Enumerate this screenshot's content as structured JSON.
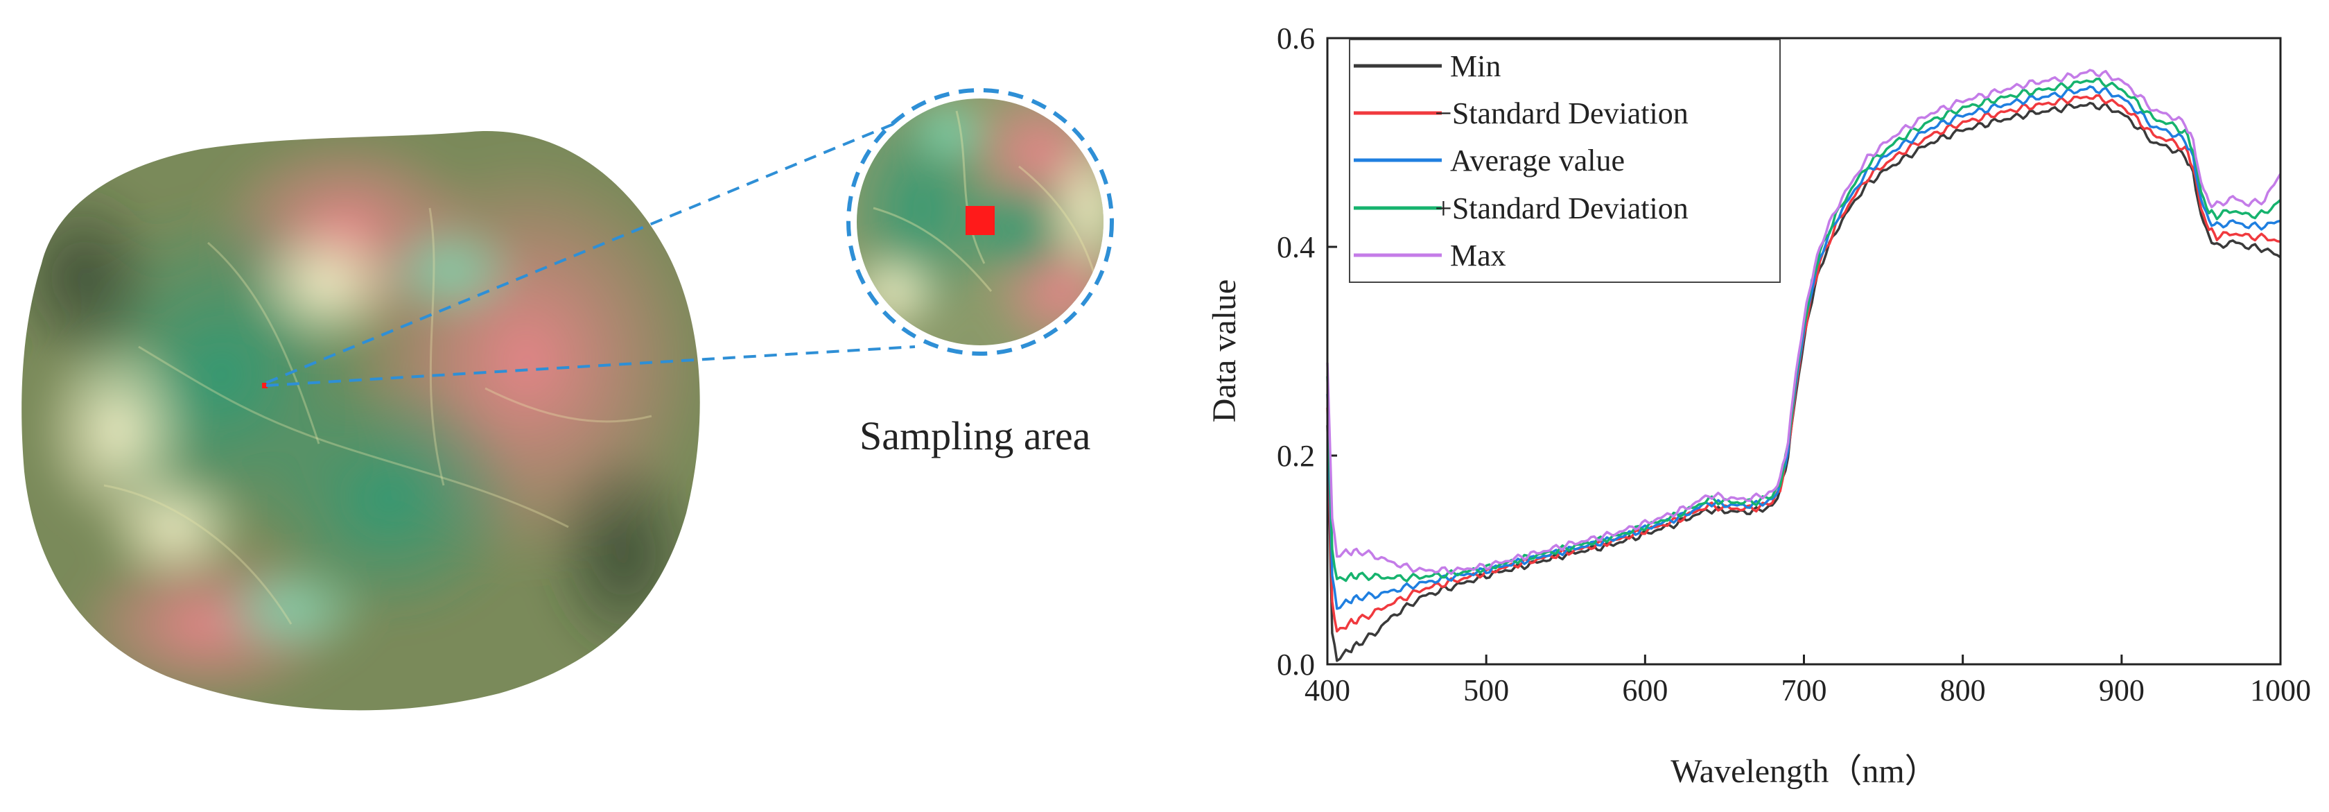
{
  "photo": {
    "caption": "Sampling area"
  },
  "colors": {
    "min": "#3a3a3a",
    "minus_sd": "#f0393e",
    "average": "#1f7fe0",
    "plus_sd": "#16b36e",
    "max": "#c47ce8",
    "marker": "#ff1a1a",
    "callout": "#2e8fd6"
  },
  "chart_data": {
    "type": "line",
    "title": "",
    "xlabel": "Wavelength（nm）",
    "ylabel": "Data value",
    "xlim": [
      400,
      1000
    ],
    "ylim": [
      0.0,
      0.6
    ],
    "xticks": [
      "400",
      "500",
      "600",
      "700",
      "800",
      "900",
      "1000"
    ],
    "xtick_values": [
      400,
      500,
      600,
      700,
      800,
      900,
      1000
    ],
    "yticks": [
      "0.0",
      "0.2",
      "0.4",
      "0.6"
    ],
    "ytick_values": [
      0.0,
      0.2,
      0.4,
      0.6
    ],
    "legend_position": "top-left",
    "x": [
      400,
      403,
      406,
      410,
      415,
      420,
      430,
      440,
      450,
      460,
      480,
      500,
      520,
      550,
      580,
      600,
      620,
      630,
      640,
      650,
      660,
      670,
      680,
      685,
      690,
      695,
      700,
      705,
      710,
      720,
      730,
      740,
      750,
      760,
      780,
      800,
      820,
      840,
      860,
      870,
      880,
      890,
      900,
      910,
      920,
      930,
      940,
      945,
      950,
      955,
      960,
      970,
      980,
      990,
      1000
    ],
    "series": [
      {
        "name": "Min",
        "color_key": "min",
        "values": [
          0.23,
          0.03,
          0.005,
          0.01,
          0.015,
          0.02,
          0.03,
          0.045,
          0.055,
          0.065,
          0.075,
          0.085,
          0.093,
          0.105,
          0.115,
          0.125,
          0.135,
          0.142,
          0.148,
          0.147,
          0.146,
          0.147,
          0.152,
          0.165,
          0.2,
          0.26,
          0.31,
          0.35,
          0.38,
          0.415,
          0.44,
          0.46,
          0.472,
          0.482,
          0.5,
          0.512,
          0.52,
          0.527,
          0.532,
          0.535,
          0.536,
          0.534,
          0.528,
          0.515,
          0.5,
          0.495,
          0.487,
          0.47,
          0.43,
          0.41,
          0.4,
          0.405,
          0.4,
          0.398,
          0.39
        ]
      },
      {
        "name": "−Standard Deviation",
        "color_key": "minus_sd",
        "values": [
          0.245,
          0.06,
          0.03,
          0.035,
          0.04,
          0.043,
          0.05,
          0.058,
          0.065,
          0.072,
          0.08,
          0.088,
          0.096,
          0.107,
          0.118,
          0.128,
          0.138,
          0.145,
          0.152,
          0.15,
          0.149,
          0.15,
          0.155,
          0.168,
          0.203,
          0.265,
          0.315,
          0.355,
          0.385,
          0.42,
          0.445,
          0.466,
          0.478,
          0.489,
          0.507,
          0.519,
          0.527,
          0.534,
          0.539,
          0.542,
          0.544,
          0.541,
          0.535,
          0.522,
          0.507,
          0.502,
          0.494,
          0.477,
          0.437,
          0.417,
          0.41,
          0.413,
          0.41,
          0.409,
          0.405
        ]
      },
      {
        "name": "Average value",
        "color_key": "average",
        "values": [
          0.26,
          0.085,
          0.055,
          0.058,
          0.062,
          0.064,
          0.066,
          0.07,
          0.074,
          0.078,
          0.084,
          0.09,
          0.098,
          0.109,
          0.12,
          0.13,
          0.14,
          0.147,
          0.155,
          0.153,
          0.152,
          0.153,
          0.158,
          0.17,
          0.206,
          0.27,
          0.32,
          0.36,
          0.39,
          0.425,
          0.45,
          0.472,
          0.485,
          0.496,
          0.514,
          0.526,
          0.534,
          0.541,
          0.546,
          0.549,
          0.552,
          0.549,
          0.543,
          0.53,
          0.515,
          0.51,
          0.502,
          0.485,
          0.445,
          0.425,
          0.42,
          0.424,
          0.42,
          0.42,
          0.425
        ]
      },
      {
        "name": "+Standard Deviation",
        "color_key": "plus_sd",
        "values": [
          0.275,
          0.11,
          0.08,
          0.082,
          0.084,
          0.085,
          0.084,
          0.083,
          0.083,
          0.084,
          0.087,
          0.092,
          0.1,
          0.111,
          0.122,
          0.132,
          0.143,
          0.15,
          0.158,
          0.156,
          0.155,
          0.156,
          0.161,
          0.173,
          0.21,
          0.275,
          0.325,
          0.365,
          0.395,
          0.43,
          0.456,
          0.478,
          0.491,
          0.503,
          0.521,
          0.533,
          0.541,
          0.548,
          0.553,
          0.556,
          0.56,
          0.557,
          0.551,
          0.538,
          0.523,
          0.518,
          0.51,
          0.493,
          0.453,
          0.433,
          0.43,
          0.435,
          0.43,
          0.432,
          0.445
        ]
      },
      {
        "name": "Max",
        "color_key": "max",
        "values": [
          0.29,
          0.14,
          0.105,
          0.107,
          0.108,
          0.108,
          0.104,
          0.098,
          0.093,
          0.09,
          0.09,
          0.094,
          0.102,
          0.114,
          0.125,
          0.135,
          0.146,
          0.153,
          0.162,
          0.16,
          0.158,
          0.16,
          0.165,
          0.177,
          0.214,
          0.28,
          0.33,
          0.37,
          0.4,
          0.436,
          0.462,
          0.485,
          0.498,
          0.51,
          0.528,
          0.54,
          0.548,
          0.556,
          0.561,
          0.564,
          0.568,
          0.565,
          0.559,
          0.546,
          0.531,
          0.526,
          0.518,
          0.501,
          0.462,
          0.442,
          0.44,
          0.447,
          0.441,
          0.445,
          0.47
        ]
      }
    ]
  }
}
